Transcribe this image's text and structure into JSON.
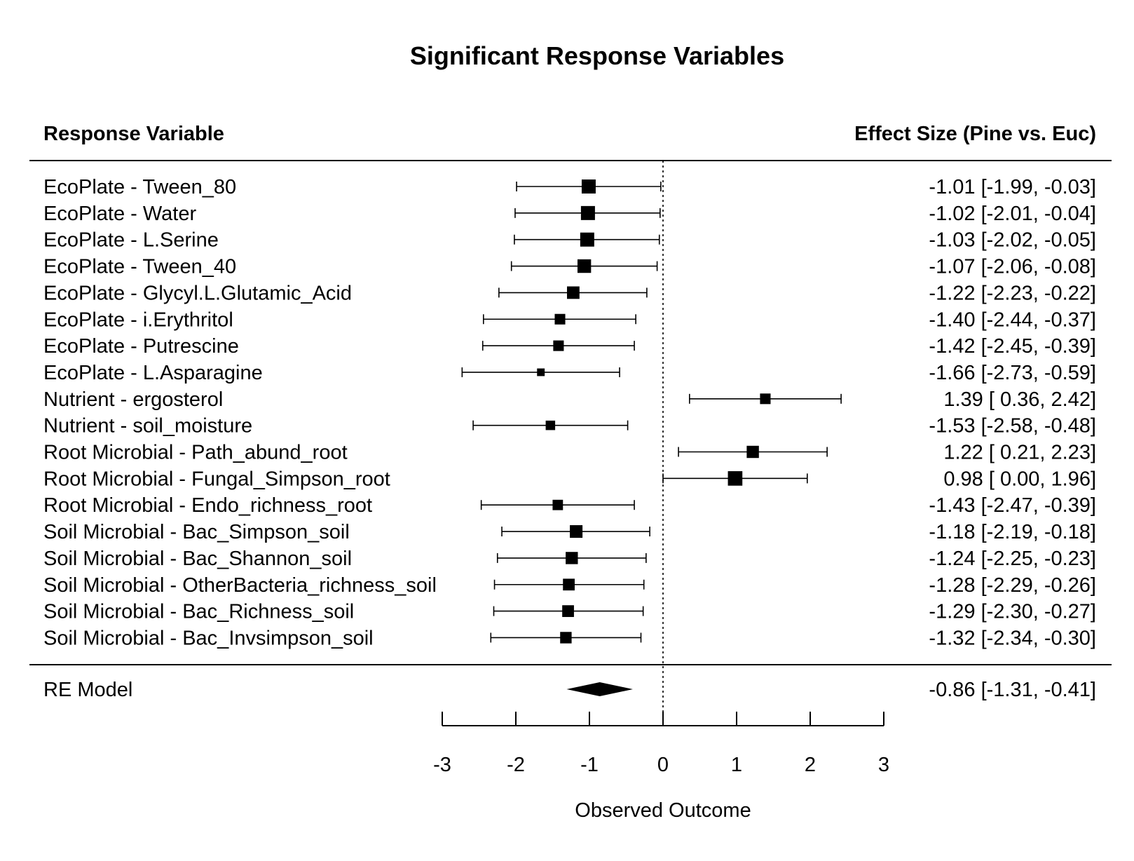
{
  "chart_data": {
    "type": "forest",
    "title": "Significant Response Variables",
    "left_header": "Response Variable",
    "right_header": "Effect Size (Pine vs. Euc)",
    "xlabel": "Observed Outcome",
    "xlim": [
      -3,
      3
    ],
    "xticks": [
      "-3",
      "-2",
      "-1",
      "0",
      "1",
      "2",
      "3"
    ],
    "reference_line": 0,
    "rows": [
      {
        "label": "EcoPlate - Tween_80",
        "estimate": -1.01,
        "lower": -1.99,
        "upper": -0.03,
        "text": "-1.01 [-1.99, -0.03]",
        "weight": 1.0
      },
      {
        "label": "EcoPlate - Water",
        "estimate": -1.02,
        "lower": -2.01,
        "upper": -0.04,
        "text": "-1.02 [-2.01, -0.04]",
        "weight": 1.0
      },
      {
        "label": "EcoPlate - L.Serine",
        "estimate": -1.03,
        "lower": -2.02,
        "upper": -0.05,
        "text": "-1.03 [-2.02, -0.05]",
        "weight": 1.0
      },
      {
        "label": "EcoPlate - Tween_40",
        "estimate": -1.07,
        "lower": -2.06,
        "upper": -0.08,
        "text": "-1.07 [-2.06, -0.08]",
        "weight": 0.95
      },
      {
        "label": "EcoPlate - Glycyl.L.Glutamic_Acid",
        "estimate": -1.22,
        "lower": -2.23,
        "upper": -0.22,
        "text": "-1.22 [-2.23, -0.22]",
        "weight": 0.83
      },
      {
        "label": "EcoPlate - i.Erythritol",
        "estimate": -1.4,
        "lower": -2.44,
        "upper": -0.37,
        "text": "-1.40 [-2.44, -0.37]",
        "weight": 0.62
      },
      {
        "label": "EcoPlate - Putrescine",
        "estimate": -1.42,
        "lower": -2.45,
        "upper": -0.39,
        "text": "-1.42 [-2.45, -0.39]",
        "weight": 0.62
      },
      {
        "label": "EcoPlate - L.Asparagine",
        "estimate": -1.66,
        "lower": -2.73,
        "upper": -0.59,
        "text": "-1.66 [-2.73, -0.59]",
        "weight": 0.3
      },
      {
        "label": "Nutrient - ergosterol",
        "estimate": 1.39,
        "lower": 0.36,
        "upper": 2.42,
        "text": "1.39 [ 0.36,  2.42]",
        "weight": 0.62
      },
      {
        "label": "Nutrient - soil_moisture",
        "estimate": -1.53,
        "lower": -2.58,
        "upper": -0.48,
        "text": "-1.53 [-2.58, -0.48]",
        "weight": 0.5
      },
      {
        "label": "Root Microbial - Path_abund_root",
        "estimate": 1.22,
        "lower": 0.21,
        "upper": 2.23,
        "text": "1.22 [ 0.21,  2.23]",
        "weight": 0.8
      },
      {
        "label": "Root Microbial - Fungal_Simpson_root",
        "estimate": 0.98,
        "lower": 0.0,
        "upper": 1.96,
        "text": "0.98 [ 0.00,  1.96]",
        "weight": 1.05
      },
      {
        "label": "Root Microbial - Endo_richness_root",
        "estimate": -1.43,
        "lower": -2.47,
        "upper": -0.39,
        "text": "-1.43 [-2.47, -0.39]",
        "weight": 0.6
      },
      {
        "label": "Soil Microbial - Bac_Simpson_soil",
        "estimate": -1.18,
        "lower": -2.19,
        "upper": -0.18,
        "text": "-1.18 [-2.19, -0.18]",
        "weight": 0.85
      },
      {
        "label": "Soil Microbial - Bac_Shannon_soil",
        "estimate": -1.24,
        "lower": -2.25,
        "upper": -0.23,
        "text": "-1.24 [-2.25, -0.23]",
        "weight": 0.8
      },
      {
        "label": "Soil Microbial - OtherBacteria_richness_soil",
        "estimate": -1.28,
        "lower": -2.29,
        "upper": -0.26,
        "text": "-1.28 [-2.29, -0.26]",
        "weight": 0.75
      },
      {
        "label": "Soil Microbial - Bac_Richness_soil",
        "estimate": -1.29,
        "lower": -2.3,
        "upper": -0.27,
        "text": "-1.29 [-2.30, -0.27]",
        "weight": 0.75
      },
      {
        "label": "Soil Microbial - Bac_Invsimpson_soil",
        "estimate": -1.32,
        "lower": -2.34,
        "upper": -0.3,
        "text": "-1.32 [-2.34, -0.30]",
        "weight": 0.72
      }
    ],
    "summary": {
      "label": "RE Model",
      "estimate": -0.86,
      "lower": -1.31,
      "upper": -0.41,
      "text": "-0.86 [-1.31, -0.41]"
    }
  }
}
